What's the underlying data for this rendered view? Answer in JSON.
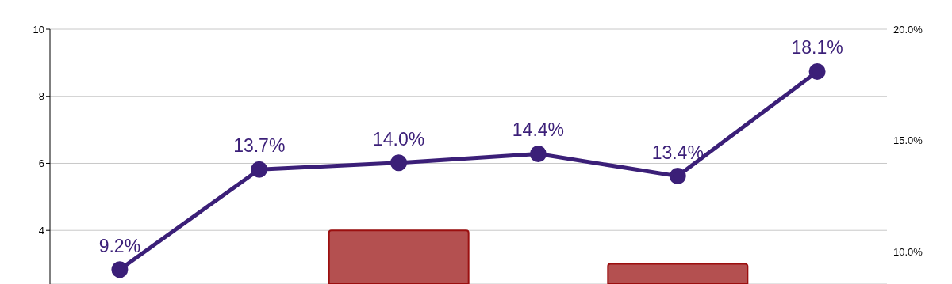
{
  "chart_data": {
    "type": "bar",
    "categories": [
      null,
      null,
      null,
      null,
      null,
      null
    ],
    "series": [
      {
        "color": "#b34c4c",
        "values": [
          null,
          null,
          4,
          null,
          3,
          null
        ]
      },
      {
        "type": "line",
        "axis": "y2",
        "color": "#3b1f78",
        "values": [
          9.2,
          13.7,
          14.0,
          14.4,
          13.4,
          18.1
        ],
        "value_labels": [
          "9.2%",
          "13.7%",
          "14.0%",
          "14.4%",
          "13.4%",
          "18.1%"
        ]
      }
    ],
    "ylim": [
      2.4,
      10
    ],
    "yticks": [
      4,
      6,
      8,
      10
    ],
    "y2lim": [
      8.55,
      20
    ],
    "y2ticks": [
      {
        "value": 10,
        "label": "10.0%"
      },
      {
        "value": 15,
        "label": "15.0%"
      },
      {
        "value": 20,
        "label": "20.0%"
      }
    ],
    "grid": "y",
    "marker": "circle",
    "line_style": "solid",
    "legend": false
  }
}
